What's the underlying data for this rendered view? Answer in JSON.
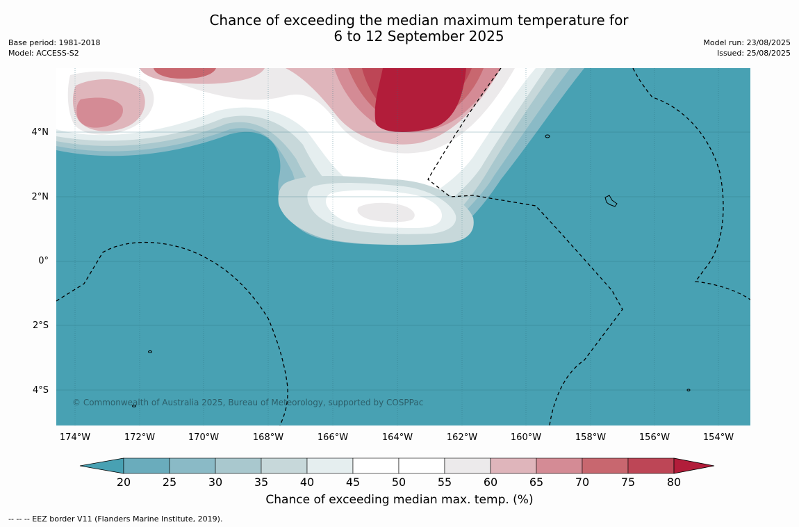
{
  "title": {
    "line1": "Chance of exceeding the median maximum temperature for",
    "line2": "6 to 12 September 2025"
  },
  "meta_left": {
    "base_period": "Base period: 1981-2018",
    "model": "Model: ACCESS-S2"
  },
  "meta_right": {
    "model_run": "Model run: 23/08/2025",
    "issued": "Issued: 25/08/2025"
  },
  "map": {
    "copyright": "© Commonwealth of Australia 2025, Bureau of Meteorology, supported by COSPPac",
    "lat_labels": [
      "4°N",
      "2°N",
      "0°",
      "2°S",
      "4°S"
    ],
    "lon_labels": [
      "174°W",
      "172°W",
      "170°W",
      "168°W",
      "166°W",
      "164°W",
      "162°W",
      "160°W",
      "158°W",
      "156°W",
      "154°W"
    ],
    "background_color": "#48a1b3"
  },
  "colorbar": {
    "ticks": [
      "20",
      "25",
      "30",
      "35",
      "40",
      "45",
      "50",
      "55",
      "60",
      "65",
      "70",
      "75",
      "80"
    ],
    "colors": [
      "#48a1b3",
      "#6aacbc",
      "#8abac6",
      "#a9c8ce",
      "#c7d8da",
      "#e5eeef",
      "#ffffff",
      "#ffffff",
      "#eceaeb",
      "#dfb5bb",
      "#d48b95",
      "#c8676f",
      "#bd4656",
      "#b21d3a"
    ],
    "title": "Chance of exceeding median max. temp. (%)"
  },
  "footnote": "--  --  -- EEZ border V11 (Flanders Marine Institute, 2019)."
}
